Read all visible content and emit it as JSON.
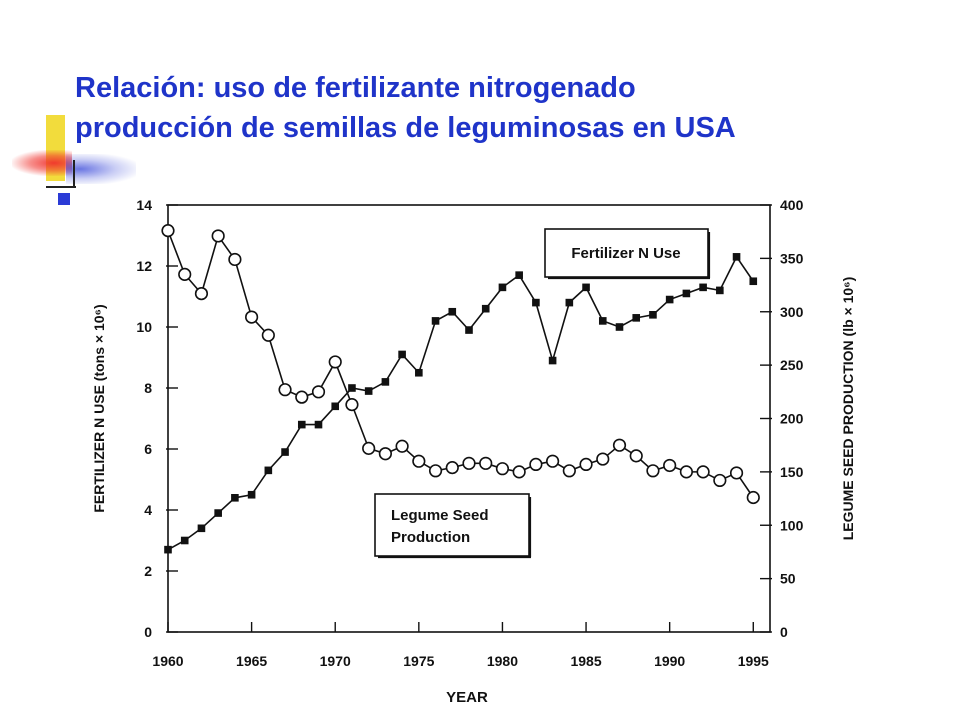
{
  "slide": {
    "title_line1": "Relación: uso de fertilizante nitrogenado",
    "title_line2": "producción de semillas de leguminosas en USA"
  },
  "colors": {
    "title": "#1f34c9",
    "deco_yellow": "#f2dc3c",
    "deco_blue": "#2b3bd6",
    "deco_red": "#f0322d"
  },
  "chart_data": {
    "type": "line",
    "xlabel": "YEAR",
    "ylabel_left": "FERTILIZER N USE (tons × 10⁶)",
    "ylabel_right": "LEGUME SEED PRODUCTION (lb × 10⁶)",
    "xlim": [
      1960,
      1996
    ],
    "ylim_left": [
      0,
      14
    ],
    "ylim_right": [
      0,
      400
    ],
    "x_ticks": [
      1960,
      1965,
      1970,
      1975,
      1980,
      1985,
      1990,
      1995
    ],
    "y_ticks_left": [
      0,
      2,
      4,
      6,
      8,
      10,
      12,
      14
    ],
    "y_ticks_right": [
      0,
      50,
      100,
      150,
      200,
      250,
      300,
      350,
      400
    ],
    "legend": [
      {
        "label": "Fertilizer N Use",
        "placement": "top-right"
      },
      {
        "label_lines": [
          "Legume Seed",
          "Production"
        ],
        "placement": "bottom-center"
      }
    ],
    "series": [
      {
        "name": "Fertilizer N Use",
        "axis": "left",
        "marker": "filled-square",
        "x": [
          1960,
          1961,
          1962,
          1963,
          1964,
          1965,
          1966,
          1967,
          1968,
          1969,
          1970,
          1971,
          1972,
          1973,
          1974,
          1975,
          1976,
          1977,
          1978,
          1979,
          1980,
          1981,
          1982,
          1983,
          1984,
          1985,
          1986,
          1987,
          1988,
          1989,
          1990,
          1991,
          1992,
          1993,
          1994,
          1995
        ],
        "values": [
          2.7,
          3.0,
          3.4,
          3.9,
          4.4,
          4.5,
          5.3,
          5.9,
          6.8,
          6.8,
          7.4,
          8.0,
          7.9,
          8.2,
          9.1,
          8.5,
          10.2,
          10.5,
          9.9,
          10.6,
          11.3,
          11.7,
          10.8,
          8.9,
          10.8,
          11.3,
          10.2,
          10.0,
          10.3,
          10.4,
          10.9,
          11.1,
          11.3,
          11.2,
          12.3,
          11.5
        ]
      },
      {
        "name": "Legume Seed Production",
        "axis": "right",
        "marker": "open-circle",
        "x": [
          1960,
          1961,
          1962,
          1963,
          1964,
          1965,
          1966,
          1967,
          1968,
          1969,
          1970,
          1971,
          1972,
          1973,
          1974,
          1975,
          1976,
          1977,
          1978,
          1979,
          1980,
          1981,
          1982,
          1983,
          1984,
          1985,
          1986,
          1987,
          1988,
          1989,
          1990,
          1991,
          1992,
          1993,
          1994,
          1995
        ],
        "values": [
          376,
          335,
          317,
          371,
          349,
          295,
          278,
          227,
          220,
          225,
          253,
          213,
          172,
          167,
          174,
          160,
          151,
          154,
          158,
          158,
          153,
          150,
          157,
          160,
          151,
          157,
          162,
          175,
          165,
          151,
          156,
          150,
          150,
          142,
          149,
          126
        ]
      }
    ]
  }
}
